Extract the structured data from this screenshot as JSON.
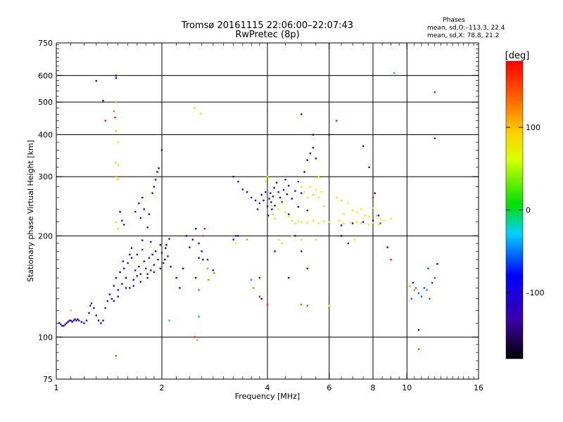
{
  "title": "Tromsø 20161115 22:06:00–22:07:43",
  "subtitle": "RwPretec (8p)",
  "phases_header": "Phases",
  "phases_line1": "mean, sd,O:–113.3, 22.4",
  "phases_line2": "mean, sd,X:  78.8, 21.2",
  "colorbar": {
    "unit_label": "[deg]",
    "ticks": [
      {
        "value": 100,
        "label": "100"
      },
      {
        "value": 0,
        "label": "0"
      },
      {
        "value": -100,
        "label": "–100"
      }
    ],
    "range": [
      -180,
      180
    ]
  },
  "chart_data": {
    "type": "scatter",
    "xlabel": "Frequency [MHz]",
    "ylabel": "Stationary phase Virtual Height [km]",
    "xscale": "log",
    "yscale": "log",
    "xlim": [
      1,
      16
    ],
    "ylim": [
      75,
      750
    ],
    "xticks": [
      {
        "value": 1,
        "label": "1"
      },
      {
        "value": 2,
        "label": "2"
      },
      {
        "value": 4,
        "label": "4"
      },
      {
        "value": 6,
        "label": "6"
      },
      {
        "value": 8,
        "label": "8"
      },
      {
        "value": 10,
        "label": "10"
      },
      {
        "value": 16,
        "label": "16"
      }
    ],
    "xminor": [
      1.5,
      3,
      5,
      7,
      9
    ],
    "yticks": [
      {
        "value": 75,
        "label": "75"
      },
      {
        "value": 100,
        "label": "100"
      },
      {
        "value": 200,
        "label": "200"
      },
      {
        "value": 300,
        "label": "300"
      },
      {
        "value": 400,
        "label": "400"
      },
      {
        "value": 500,
        "label": "500"
      },
      {
        "value": 600,
        "label": "600"
      },
      {
        "value": 750,
        "label": "750"
      }
    ],
    "xgrid": [
      2,
      4,
      6,
      8,
      10
    ],
    "ygrid": [
      100,
      200,
      300,
      400,
      500,
      600
    ],
    "points": [
      [
        1.02,
        110,
        -115
      ],
      [
        1.03,
        109,
        -112
      ],
      [
        1.04,
        108,
        -118
      ],
      [
        1.05,
        108,
        -110
      ],
      [
        1.06,
        109,
        -113
      ],
      [
        1.07,
        110,
        -116
      ],
      [
        1.08,
        111,
        -112
      ],
      [
        1.09,
        112,
        -114
      ],
      [
        1.1,
        112,
        -111
      ],
      [
        1.11,
        111,
        -115
      ],
      [
        1.12,
        112,
        -113
      ],
      [
        1.13,
        113,
        -112
      ],
      [
        1.14,
        112,
        -116
      ],
      [
        1.15,
        113,
        -114
      ],
      [
        1.16,
        112,
        -111
      ],
      [
        1.18,
        111,
        -115
      ],
      [
        1.2,
        110,
        -113
      ],
      [
        1.22,
        112,
        -118
      ],
      [
        1.24,
        118,
        -125
      ],
      [
        1.25,
        124,
        -128
      ],
      [
        1.26,
        126,
        -130
      ],
      [
        1.28,
        122,
        -132
      ],
      [
        1.3,
        116,
        -126
      ],
      [
        1.32,
        112,
        -130
      ],
      [
        1.34,
        110,
        -128
      ],
      [
        1.36,
        112,
        -132
      ],
      [
        1.38,
        122,
        -134
      ],
      [
        1.4,
        128,
        -130
      ],
      [
        1.42,
        134,
        -136
      ],
      [
        1.44,
        130,
        -130
      ],
      [
        1.46,
        142,
        -134
      ],
      [
        1.48,
        150,
        -130
      ],
      [
        1.5,
        138,
        -132
      ],
      [
        1.52,
        156,
        -136
      ],
      [
        1.54,
        144,
        -130
      ],
      [
        1.56,
        160,
        -132
      ],
      [
        1.58,
        150,
        -138
      ],
      [
        1.6,
        166,
        -130
      ],
      [
        1.62,
        140,
        -134
      ],
      [
        1.64,
        172,
        -132
      ],
      [
        1.66,
        148,
        -136
      ],
      [
        1.68,
        158,
        -130
      ],
      [
        1.7,
        176,
        -134
      ],
      [
        1.72,
        162,
        -132
      ],
      [
        1.74,
        154,
        -136
      ],
      [
        1.76,
        182,
        -132
      ],
      [
        1.78,
        168,
        -130
      ],
      [
        1.8,
        160,
        -134
      ],
      [
        1.82,
        150,
        -132
      ],
      [
        1.84,
        172,
        -136
      ],
      [
        1.86,
        158,
        -130
      ],
      [
        1.88,
        176,
        -132
      ],
      [
        1.9,
        164,
        -134
      ],
      [
        1.92,
        180,
        -130
      ],
      [
        1.95,
        170,
        -132
      ],
      [
        1.98,
        188,
        -136
      ],
      [
        2.0,
        178,
        -130
      ],
      [
        2.02,
        166,
        -132
      ],
      [
        2.05,
        184,
        -128
      ],
      [
        2.08,
        174,
        -124
      ],
      [
        2.1,
        196,
        -122
      ],
      [
        2.12,
        162,
        -126
      ],
      [
        1.55,
        168,
        -128
      ],
      [
        1.62,
        176,
        -132
      ],
      [
        1.7,
        152,
        -134
      ],
      [
        1.46,
        128,
        -136
      ],
      [
        1.5,
        132,
        -128
      ],
      [
        1.58,
        140,
        -130
      ],
      [
        1.66,
        142,
        -134
      ],
      [
        1.74,
        146,
        -132
      ],
      [
        1.82,
        154,
        -136
      ],
      [
        1.9,
        156,
        -130
      ],
      [
        1.98,
        160,
        -132
      ],
      [
        2.04,
        170,
        -130
      ],
      [
        1.64,
        184,
        -132
      ],
      [
        1.76,
        194,
        -134
      ],
      [
        1.86,
        192,
        -130
      ],
      [
        2.06,
        188,
        -128
      ],
      [
        1.54,
        222,
        -130
      ],
      [
        1.56,
        216,
        -132
      ],
      [
        1.68,
        236,
        -134
      ],
      [
        1.72,
        250,
        -132
      ],
      [
        1.74,
        226,
        -130
      ],
      [
        1.76,
        260,
        -128
      ],
      [
        1.78,
        240,
        -132
      ],
      [
        1.82,
        212,
        -130
      ],
      [
        1.84,
        232,
        -134
      ],
      [
        1.88,
        268,
        -130
      ],
      [
        1.9,
        280,
        -132
      ],
      [
        1.92,
        294,
        -134
      ],
      [
        1.94,
        310,
        -130
      ],
      [
        1.96,
        318,
        -126
      ],
      [
        2.0,
        360,
        -120
      ],
      [
        1.3,
        578,
        -100
      ],
      [
        1.36,
        505,
        -100
      ],
      [
        1.48,
        600,
        -128
      ],
      [
        1.52,
        236,
        -140
      ],
      [
        2.35,
        200,
        -110
      ],
      [
        2.4,
        185,
        -112
      ],
      [
        2.45,
        195,
        -118
      ],
      [
        2.5,
        210,
        -112
      ],
      [
        2.55,
        190,
        -110
      ],
      [
        2.6,
        180,
        -108
      ],
      [
        2.62,
        170,
        -105
      ],
      [
        2.3,
        160,
        -115
      ],
      [
        2.7,
        170,
        -112
      ],
      [
        2.8,
        158,
        -108
      ],
      [
        2.2,
        150,
        -120
      ],
      [
        2.25,
        140,
        -112
      ],
      [
        2.5,
        150,
        -108
      ],
      [
        3.2,
        300,
        -120
      ],
      [
        3.3,
        290,
        -118
      ],
      [
        3.4,
        275,
        -122
      ],
      [
        3.5,
        270,
        -120
      ],
      [
        3.6,
        260,
        -125
      ],
      [
        3.7,
        255,
        -118
      ],
      [
        3.3,
        200,
        -130
      ],
      [
        3.2,
        195,
        -120
      ],
      [
        3.5,
        195,
        30
      ],
      [
        3.8,
        150,
        -125
      ],
      [
        3.75,
        240,
        -110
      ],
      [
        3.8,
        250,
        -112
      ],
      [
        3.85,
        265,
        -115
      ],
      [
        3.9,
        255,
        -105
      ],
      [
        3.95,
        270,
        -118
      ],
      [
        4.0,
        245,
        -110
      ],
      [
        4.02,
        230,
        -108
      ],
      [
        4.05,
        258,
        -120
      ],
      [
        4.08,
        268,
        -112
      ],
      [
        4.1,
        252,
        -118
      ],
      [
        4.12,
        240,
        -106
      ],
      [
        4.15,
        262,
        -114
      ],
      [
        4.18,
        278,
        -110
      ],
      [
        4.2,
        246,
        -118
      ],
      [
        4.25,
        288,
        -112
      ],
      [
        4.3,
        270,
        -116
      ],
      [
        4.35,
        260,
        -108
      ],
      [
        4.4,
        252,
        -120
      ],
      [
        4.45,
        274,
        -112
      ],
      [
        4.5,
        294,
        -115
      ],
      [
        4.55,
        266,
        -110
      ],
      [
        4.6,
        282,
        -118
      ],
      [
        4.7,
        258,
        -112
      ],
      [
        4.8,
        272,
        -116
      ],
      [
        4.9,
        290,
        -108
      ],
      [
        5.0,
        268,
        -112
      ],
      [
        5.1,
        310,
        -118
      ],
      [
        5.2,
        336,
        -112
      ],
      [
        5.3,
        352,
        -106
      ],
      [
        5.4,
        366,
        -110
      ],
      [
        5.5,
        340,
        -116
      ],
      [
        5.0,
        460,
        -120
      ],
      [
        5.4,
        400,
        -112
      ],
      [
        6.0,
        400,
        -115
      ],
      [
        4.6,
        232,
        -110
      ],
      [
        4.9,
        244,
        -118
      ],
      [
        5.2,
        238,
        -108
      ],
      [
        3.95,
        290,
        60
      ],
      [
        4.0,
        300,
        62
      ],
      [
        4.05,
        262,
        58
      ],
      [
        4.1,
        246,
        55
      ],
      [
        4.15,
        232,
        52
      ],
      [
        4.2,
        225,
        48
      ],
      [
        4.3,
        240,
        58
      ],
      [
        4.4,
        250,
        62
      ],
      [
        4.5,
        235,
        55
      ],
      [
        4.6,
        228,
        60
      ],
      [
        4.7,
        222,
        52
      ],
      [
        4.8,
        218,
        56
      ],
      [
        4.9,
        221,
        62
      ],
      [
        5.0,
        220,
        60
      ],
      [
        5.2,
        219,
        55
      ],
      [
        5.4,
        222,
        58
      ],
      [
        5.6,
        218,
        62
      ],
      [
        5.8,
        221,
        55
      ],
      [
        6.0,
        220,
        60
      ],
      [
        5.0,
        280,
        65
      ],
      [
        5.1,
        270,
        58
      ],
      [
        5.2,
        260,
        62
      ],
      [
        5.3,
        280,
        60
      ],
      [
        5.4,
        265,
        55
      ],
      [
        5.5,
        275,
        62
      ],
      [
        5.6,
        260,
        58
      ],
      [
        5.7,
        270,
        60
      ],
      [
        5.8,
        245,
        55
      ],
      [
        5.6,
        300,
        62
      ],
      [
        6.3,
        260,
        50
      ],
      [
        6.5,
        255,
        55
      ],
      [
        6.8,
        250,
        60
      ],
      [
        7.0,
        238,
        55
      ],
      [
        7.2,
        235,
        62
      ],
      [
        7.4,
        240,
        58
      ],
      [
        7.6,
        230,
        55
      ],
      [
        7.8,
        228,
        60
      ],
      [
        8.0,
        242,
        62
      ],
      [
        8.2,
        230,
        55
      ],
      [
        8.4,
        225,
        58
      ],
      [
        8.6,
        222,
        60
      ],
      [
        6.6,
        232,
        62
      ],
      [
        6.4,
        222,
        60
      ],
      [
        6.6,
        218,
        55
      ],
      [
        6.9,
        219,
        58
      ],
      [
        7.2,
        220,
        60
      ],
      [
        7.4,
        218,
        55
      ],
      [
        7.8,
        216,
        62
      ],
      [
        8.0,
        219,
        58
      ],
      [
        8.3,
        216,
        60
      ],
      [
        6.5,
        215,
        -108
      ],
      [
        7.0,
        218,
        -112
      ],
      [
        7.5,
        220,
        -110
      ],
      [
        8.0,
        222,
        -118
      ],
      [
        8.1,
        268,
        -120
      ],
      [
        8.3,
        230,
        -112
      ],
      [
        7.8,
        320,
        -112
      ],
      [
        7.5,
        370,
        -110
      ],
      [
        8.0,
        260,
        170
      ],
      [
        8.4,
        218,
        165
      ],
      [
        6.3,
        440,
        175
      ],
      [
        4.3,
        195,
        70
      ],
      [
        4.4,
        190,
        75
      ],
      [
        4.7,
        200,
        72
      ],
      [
        5.0,
        195,
        68
      ],
      [
        5.5,
        195,
        70
      ],
      [
        4.2,
        180,
        -110
      ],
      [
        4.6,
        150,
        -115
      ],
      [
        4.8,
        200,
        -112
      ],
      [
        5.0,
        180,
        -118
      ],
      [
        5.2,
        160,
        -112
      ],
      [
        4.0,
        125,
        160
      ],
      [
        3.85,
        130,
        -118
      ],
      [
        3.65,
        140,
        20
      ],
      [
        5.2,
        124,
        150
      ],
      [
        6.0,
        124,
        70
      ],
      [
        5.0,
        125,
        140
      ],
      [
        6.5,
        200,
        -112
      ],
      [
        6.8,
        190,
        -108
      ],
      [
        7.1,
        195,
        65
      ],
      [
        9.0,
        170,
        170
      ],
      [
        9.2,
        610,
        0
      ],
      [
        9.0,
        225,
        60
      ],
      [
        8.8,
        185,
        -110
      ],
      [
        10.4,
        145,
        -60
      ],
      [
        10.6,
        140,
        -50
      ],
      [
        10.8,
        135,
        -55
      ],
      [
        11.0,
        132,
        -52
      ],
      [
        11.2,
        140,
        -60
      ],
      [
        11.4,
        138,
        -50
      ],
      [
        11.6,
        130,
        -55
      ],
      [
        11.8,
        145,
        -60
      ],
      [
        12.0,
        150,
        -52
      ],
      [
        11.5,
        160,
        -58
      ],
      [
        12.2,
        165,
        -115
      ],
      [
        10.3,
        130,
        -55
      ],
      [
        10.2,
        142,
        110
      ],
      [
        10.5,
        138,
        120
      ],
      [
        10.8,
        105,
        -120
      ],
      [
        10.8,
        92,
        150
      ],
      [
        12.0,
        535,
        -60
      ],
      [
        12.0,
        390,
        -60
      ],
      [
        1.48,
        590,
        -125
      ],
      [
        1.46,
        470,
        130
      ],
      [
        1.47,
        450,
        160
      ],
      [
        1.38,
        440,
        170
      ],
      [
        1.48,
        410,
        100
      ],
      [
        1.5,
        380,
        70
      ],
      [
        1.48,
        330,
        95
      ],
      [
        1.5,
        325,
        90
      ],
      [
        1.48,
        300,
        100
      ],
      [
        1.5,
        295,
        95
      ],
      [
        1.48,
        220,
        90
      ],
      [
        1.5,
        210,
        70
      ],
      [
        1.48,
        500,
        110
      ],
      [
        1.1,
        120,
        100
      ],
      [
        1.48,
        88,
        140
      ],
      [
        2.48,
        480,
        100
      ],
      [
        2.58,
        462,
        80
      ],
      [
        2.62,
        200,
        150
      ],
      [
        2.55,
        172,
        -115
      ],
      [
        2.7,
        160,
        120
      ],
      [
        2.82,
        155,
        130
      ],
      [
        2.72,
        148,
        125
      ],
      [
        2.55,
        138,
        150
      ],
      [
        2.1,
        112,
        -20
      ],
      [
        2.55,
        115,
        -40
      ],
      [
        2.48,
        100,
        165
      ],
      [
        2.52,
        98,
        110
      ],
      [
        3.8,
        132,
        175
      ],
      [
        3.6,
        148,
        -40
      ],
      [
        2.65,
        210,
        175
      ],
      [
        3.25,
        190,
        82
      ],
      [
        3.25,
        200,
        -112
      ]
    ]
  }
}
